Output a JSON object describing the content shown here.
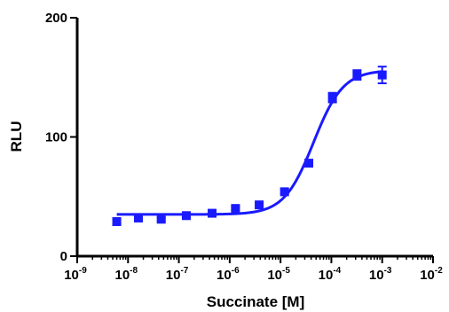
{
  "chart_data": {
    "type": "scatter",
    "title": "",
    "xlabel": "Succinate [M]",
    "ylabel": "RLU",
    "x_scale": "log",
    "xlim": [
      "1e-9",
      "1e-2"
    ],
    "ylim": [
      0,
      200
    ],
    "x_tick_base": "10",
    "x_tick_exponents": [
      "-9",
      "-8",
      "-7",
      "-6",
      "-5",
      "-4",
      "-3",
      "-2"
    ],
    "y_ticks": [
      "0",
      "100",
      "200"
    ],
    "grid": false,
    "legend": "none",
    "color": "#1a1aff",
    "points": [
      {
        "x": 6e-09,
        "y": 29,
        "err": 2
      },
      {
        "x": 1.6e-08,
        "y": 32,
        "err": 1.5
      },
      {
        "x": 4.5e-08,
        "y": 31,
        "err": 1.5
      },
      {
        "x": 1.4e-07,
        "y": 34,
        "err": 1.5
      },
      {
        "x": 4.5e-07,
        "y": 36,
        "err": 1.5
      },
      {
        "x": 1.3e-06,
        "y": 40,
        "err": 1.5
      },
      {
        "x": 3.8e-06,
        "y": 43,
        "err": 1.5
      },
      {
        "x": 1.2e-05,
        "y": 54,
        "err": 1.5
      },
      {
        "x": 3.6e-05,
        "y": 78,
        "err": 2
      },
      {
        "x": 0.000105,
        "y": 133,
        "err": 4
      },
      {
        "x": 0.00032,
        "y": 152,
        "err": 4
      },
      {
        "x": 0.001,
        "y": 152,
        "err": 7
      }
    ],
    "fit_curve": {
      "model": "sigmoidal dose-response",
      "bottom": 35,
      "top": 156,
      "log_ec50": -4.35,
      "hill_slope": 1.5,
      "x_range": [
        "6e-9",
        "1e-3"
      ]
    }
  }
}
